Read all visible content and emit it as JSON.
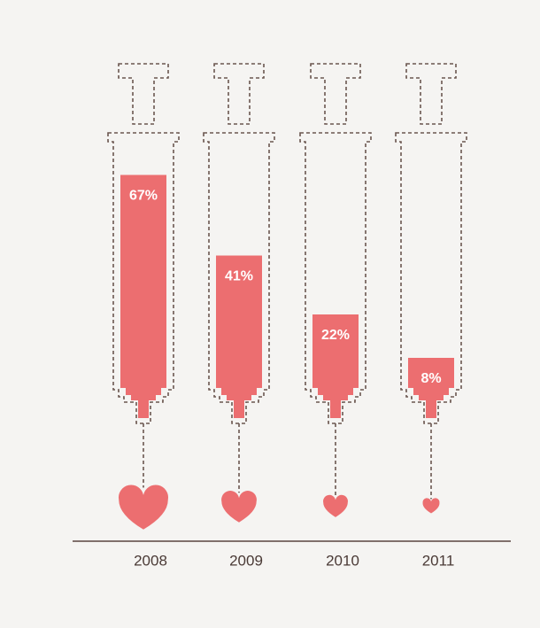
{
  "chart_data": {
    "type": "syringe-bar",
    "categories": [
      "2008",
      "2009",
      "2010",
      "2011"
    ],
    "values": [
      67,
      41,
      22,
      8
    ],
    "value_labels": [
      "67%",
      "41%",
      "22%",
      "8%"
    ],
    "color": "#ec6e70"
  }
}
